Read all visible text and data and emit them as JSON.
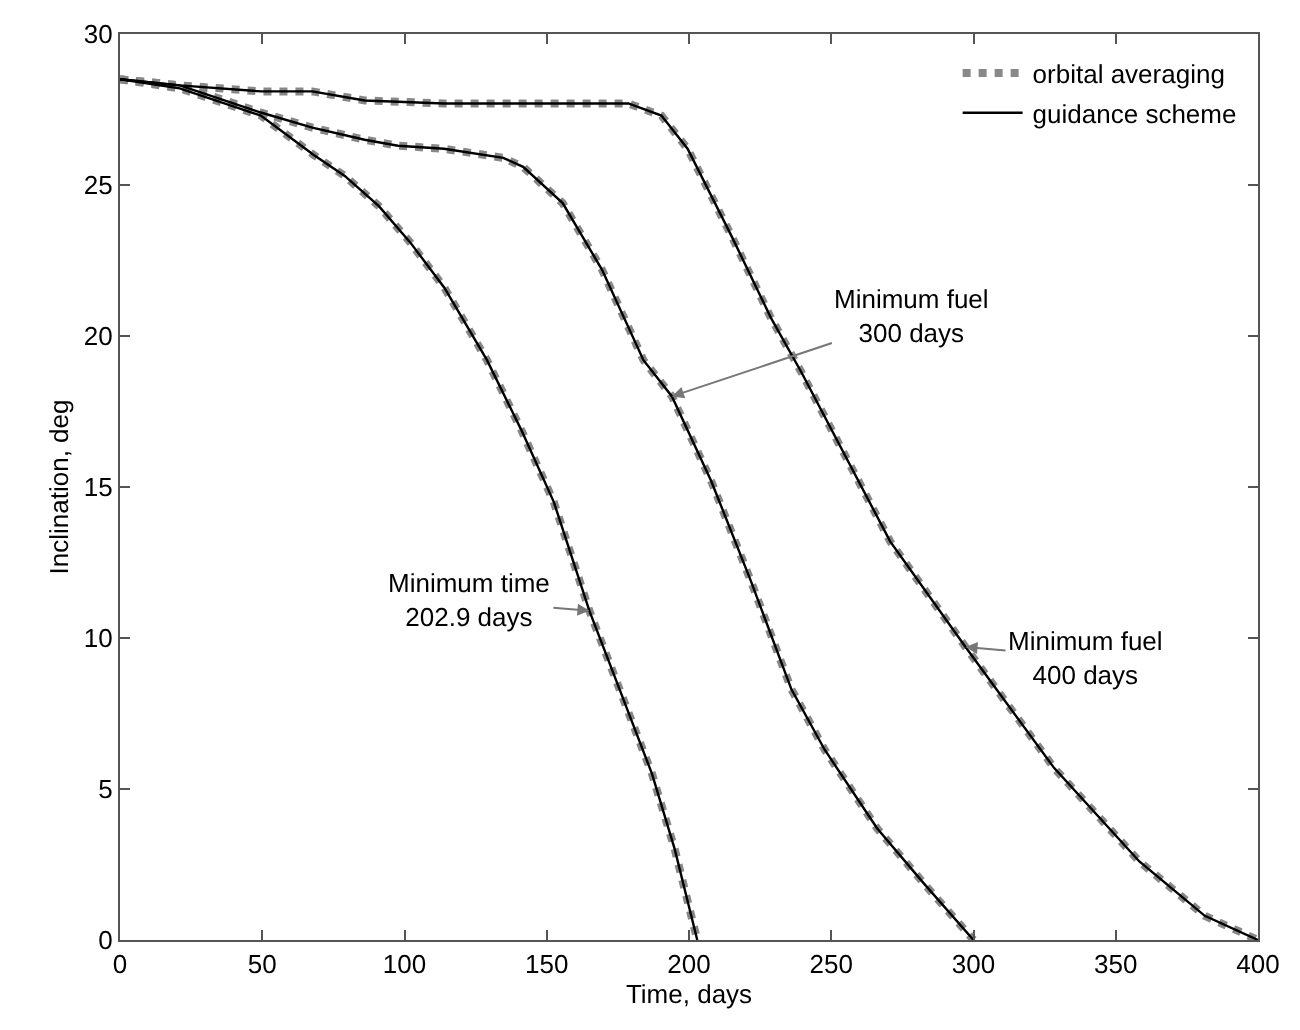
{
  "chart_data": {
    "type": "line",
    "xlabel": "Time, days",
    "ylabel": "Inclination, deg",
    "xlim": [
      0,
      400
    ],
    "ylim": [
      0,
      30
    ],
    "xticks": [
      0,
      50,
      100,
      150,
      200,
      250,
      300,
      350,
      400
    ],
    "yticks": [
      0,
      5,
      10,
      15,
      20,
      25,
      30
    ],
    "legend": "top right",
    "marker": "none",
    "series": [
      {
        "name": "orbital averaging",
        "color": "#888888",
        "line_style": "dotted",
        "x": [
          0,
          21,
          49.5,
          68,
          79,
          91,
          102,
          114,
          129,
          141,
          152.5,
          165,
          175.6,
          187,
          195,
          202.9
        ],
        "values": [
          28.5,
          28.2,
          27.3,
          26.0,
          25.3,
          24.3,
          23.1,
          21.6,
          19.2,
          16.9,
          14.5,
          10.9,
          8.3,
          5.5,
          3.0,
          0
        ]
      },
      {
        "color": "#888888",
        "line_style": "dotted",
        "x": [
          0,
          21,
          49.5,
          67.6,
          86,
          97.7,
          113.9,
          134.7,
          141.7,
          155.6,
          169.4,
          184,
          194,
          207.8,
          221.7,
          236,
          247.7,
          266.1,
          282.3,
          300
        ],
        "values": [
          28.5,
          28.3,
          27.4,
          26.9,
          26.5,
          26.3,
          26.2,
          25.9,
          25.6,
          24.4,
          22.2,
          19.2,
          18.0,
          15.2,
          11.9,
          8.3,
          6.3,
          3.7,
          1.9,
          0
        ]
      },
      {
        "color": "#888888",
        "line_style": "dotted",
        "x": [
          0,
          21,
          49.5,
          67.6,
          86,
          113.9,
          178.7,
          190.3,
          199.5,
          215,
          228.8,
          239.5,
          270.7,
          297.2,
          328.3,
          358.3,
          381.3,
          400
        ],
        "values": [
          28.5,
          28.3,
          28.1,
          28.1,
          27.8,
          27.7,
          27.7,
          27.3,
          26.2,
          23.3,
          20.6,
          18.8,
          13.2,
          9.7,
          5.7,
          2.6,
          0.8,
          0
        ]
      },
      {
        "name": "guidance scheme",
        "color": "#000000",
        "line_style": "solid",
        "x": [
          0,
          21,
          49.5,
          68,
          79,
          91,
          102,
          114,
          129,
          141,
          152.5,
          165,
          175.6,
          187,
          195,
          202.9
        ],
        "values": [
          28.5,
          28.2,
          27.3,
          26.0,
          25.3,
          24.3,
          23.1,
          21.6,
          19.2,
          16.9,
          14.5,
          10.9,
          8.3,
          5.5,
          3.0,
          0
        ]
      },
      {
        "color": "#000000",
        "line_style": "solid",
        "x": [
          0,
          21,
          49.5,
          67.6,
          86,
          97.7,
          113.9,
          134.7,
          141.7,
          155.6,
          169.4,
          184,
          194,
          207.8,
          221.7,
          236,
          247.7,
          266.1,
          282.3,
          300
        ],
        "values": [
          28.5,
          28.3,
          27.4,
          26.9,
          26.5,
          26.3,
          26.2,
          25.9,
          25.6,
          24.4,
          22.2,
          19.2,
          18.0,
          15.2,
          11.9,
          8.3,
          6.3,
          3.7,
          1.9,
          0
        ]
      },
      {
        "color": "#000000",
        "line_style": "solid",
        "x": [
          0,
          21,
          49.5,
          67.6,
          86,
          113.9,
          178.7,
          190.3,
          199.5,
          215,
          228.8,
          239.5,
          270.7,
          297.2,
          328.3,
          358.3,
          381.3,
          400
        ],
        "values": [
          28.5,
          28.3,
          28.1,
          28.1,
          27.8,
          27.7,
          27.7,
          27.3,
          26.2,
          23.3,
          20.6,
          18.8,
          13.2,
          9.7,
          5.7,
          2.6,
          0.8,
          0
        ]
      }
    ],
    "annotations": [
      {
        "text": "Minimum time\n202.9 days",
        "x": 165,
        "y": 10.9
      },
      {
        "text": "Minimum fuel\n300 days",
        "x": 194,
        "y": 18.0
      },
      {
        "text": "Minimum fuel\n400 days",
        "x": 297.2,
        "y": 9.7
      }
    ]
  }
}
